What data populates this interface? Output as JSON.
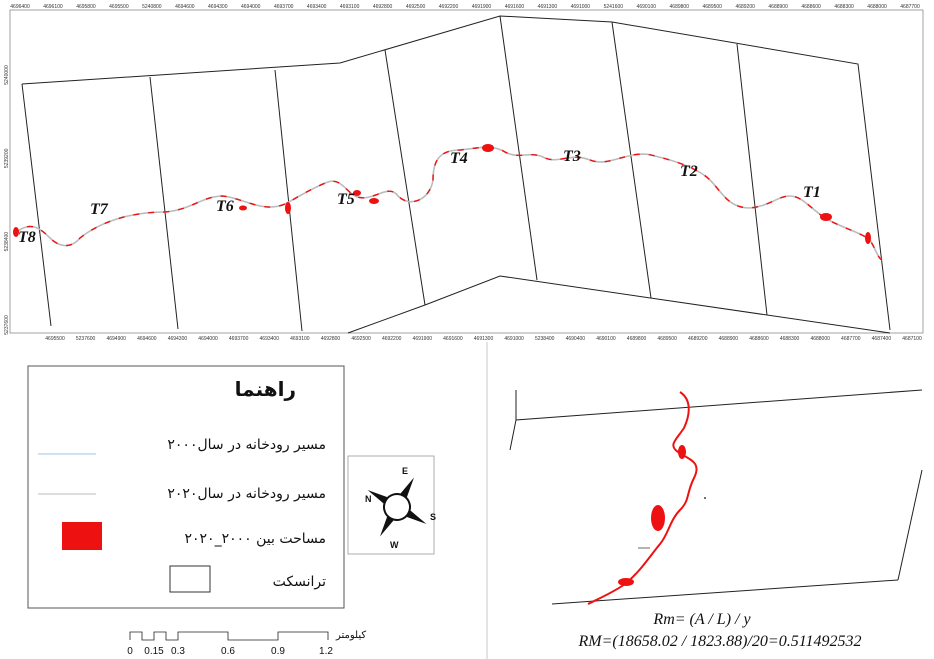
{
  "top_ticks": [
    "4696400",
    "4696100",
    "4695800",
    "4695500",
    "5240800",
    "4694600",
    "4694300",
    "4694000",
    "4693700",
    "4693400",
    "4693100",
    "4692800",
    "4692500",
    "4692200",
    "4691900",
    "4691600",
    "4691300",
    "4691000",
    "5241600",
    "4690100",
    "4689800",
    "4689500",
    "4689200",
    "4688900",
    "4688600",
    "4688300",
    "4688000",
    "4687700"
  ],
  "bottom_ticks": [
    "4695500",
    "5237600",
    "4694900",
    "4694600",
    "4694300",
    "4694000",
    "4693700",
    "4693400",
    "4693100",
    "4692800",
    "4692500",
    "4692200",
    "4691900",
    "4691600",
    "4691300",
    "4691000",
    "5238400",
    "4690400",
    "4690100",
    "4689800",
    "4689500",
    "4689200",
    "4688900",
    "4688600",
    "4688300",
    "4688000",
    "4687700",
    "4687400",
    "4687100"
  ],
  "left_ticks": [
    "5240000",
    "5239200",
    "5238400",
    "5237600"
  ],
  "transects": [
    "T1",
    "T2",
    "T3",
    "T4",
    "T5",
    "T6",
    "T7",
    "T8"
  ],
  "legend": {
    "title": "راهنما",
    "items": [
      {
        "label": "مسیر رودخانه در سال۲۰۰۰",
        "symbol": "line",
        "color": "#9ec9e8"
      },
      {
        "label": "مسیر رودخانه در سال۲۰۲۰",
        "symbol": "line",
        "color": "#bbbbbb"
      },
      {
        "label": "مساحت بین ۲۰۰۰_۲۰۲۰",
        "symbol": "fill",
        "color": "#ee1111"
      },
      {
        "label": "ترانسکت",
        "symbol": "box",
        "color": "#ffffff"
      }
    ]
  },
  "compass": {
    "n": "N",
    "e": "E",
    "s": "S",
    "w": "W"
  },
  "scale": {
    "unit": "کیلومتر",
    "labels": [
      "0",
      "0.15",
      "0.3",
      "0.6",
      "0.9",
      "1.2"
    ]
  },
  "formula": {
    "line1": "Rm= (A / L) / y",
    "line2": "RM=(18658.02 / 1823.88)/20=0.511492532"
  },
  "colors": {
    "river": "#bbbbbb",
    "change_area": "#ee1111",
    "transect": "#222222"
  }
}
